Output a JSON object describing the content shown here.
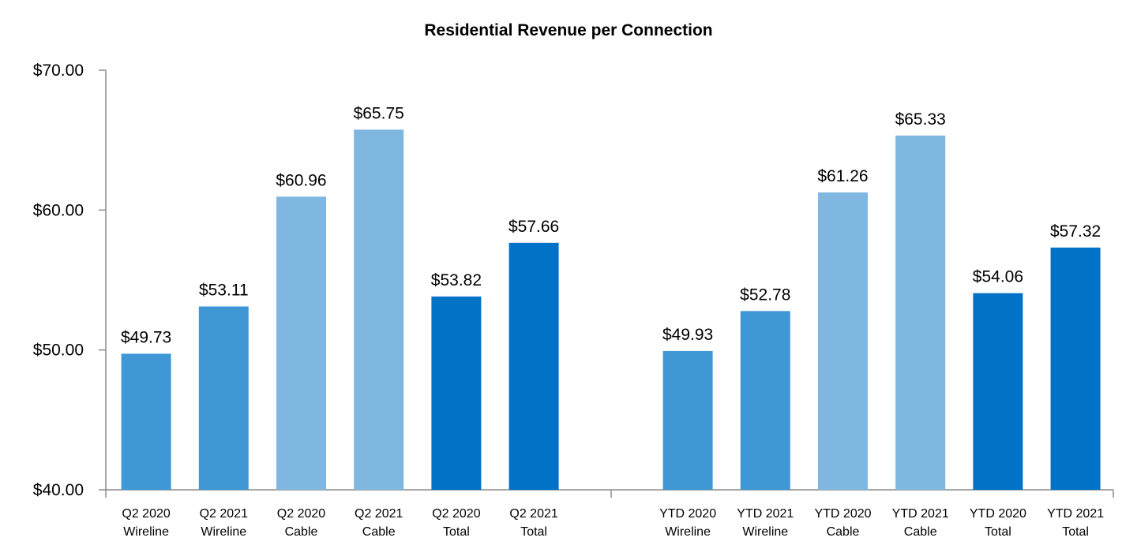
{
  "chart_data": {
    "type": "bar",
    "title": "Residential Revenue per Connection",
    "xlabel": "",
    "ylabel": "",
    "ylim": [
      40,
      70
    ],
    "ytick_values": [
      40,
      50,
      60,
      70
    ],
    "ytick_labels": [
      "$40.00",
      "$50.00",
      "$60.00",
      "$70.00"
    ],
    "groups": [
      {
        "categories": [
          [
            "Q2 2020",
            "Wireline"
          ],
          [
            "Q2 2021",
            "Wireline"
          ],
          [
            "Q2 2020",
            "Cable"
          ],
          [
            "Q2 2021",
            "Cable"
          ],
          [
            "Q2 2020",
            "Total"
          ],
          [
            "Q2 2021",
            "Total"
          ]
        ],
        "values": [
          49.73,
          53.11,
          60.96,
          65.75,
          53.82,
          57.66
        ],
        "value_labels": [
          "$49.73",
          "$53.11",
          "$60.96",
          "$65.75",
          "$53.82",
          "$57.66"
        ],
        "colors": [
          "#3f98d5",
          "#3f98d5",
          "#7fb7e0",
          "#7fb7e0",
          "#0172c6",
          "#0172c6"
        ]
      },
      {
        "categories": [
          [
            "YTD 2020",
            "Wireline"
          ],
          [
            "YTD 2021",
            "Wireline"
          ],
          [
            "YTD 2020",
            "Cable"
          ],
          [
            "YTD 2021",
            "Cable"
          ],
          [
            "YTD 2020",
            "Total"
          ],
          [
            "YTD 2021",
            "Total"
          ]
        ],
        "values": [
          49.93,
          52.78,
          61.26,
          65.33,
          54.06,
          57.32
        ],
        "value_labels": [
          "$49.93",
          "$52.78",
          "$61.26",
          "$65.33",
          "$54.06",
          "$57.32"
        ],
        "colors": [
          "#3f98d5",
          "#3f98d5",
          "#7fb7e0",
          "#7fb7e0",
          "#0172c6",
          "#0172c6"
        ]
      }
    ],
    "grid": false,
    "legend": "none"
  }
}
